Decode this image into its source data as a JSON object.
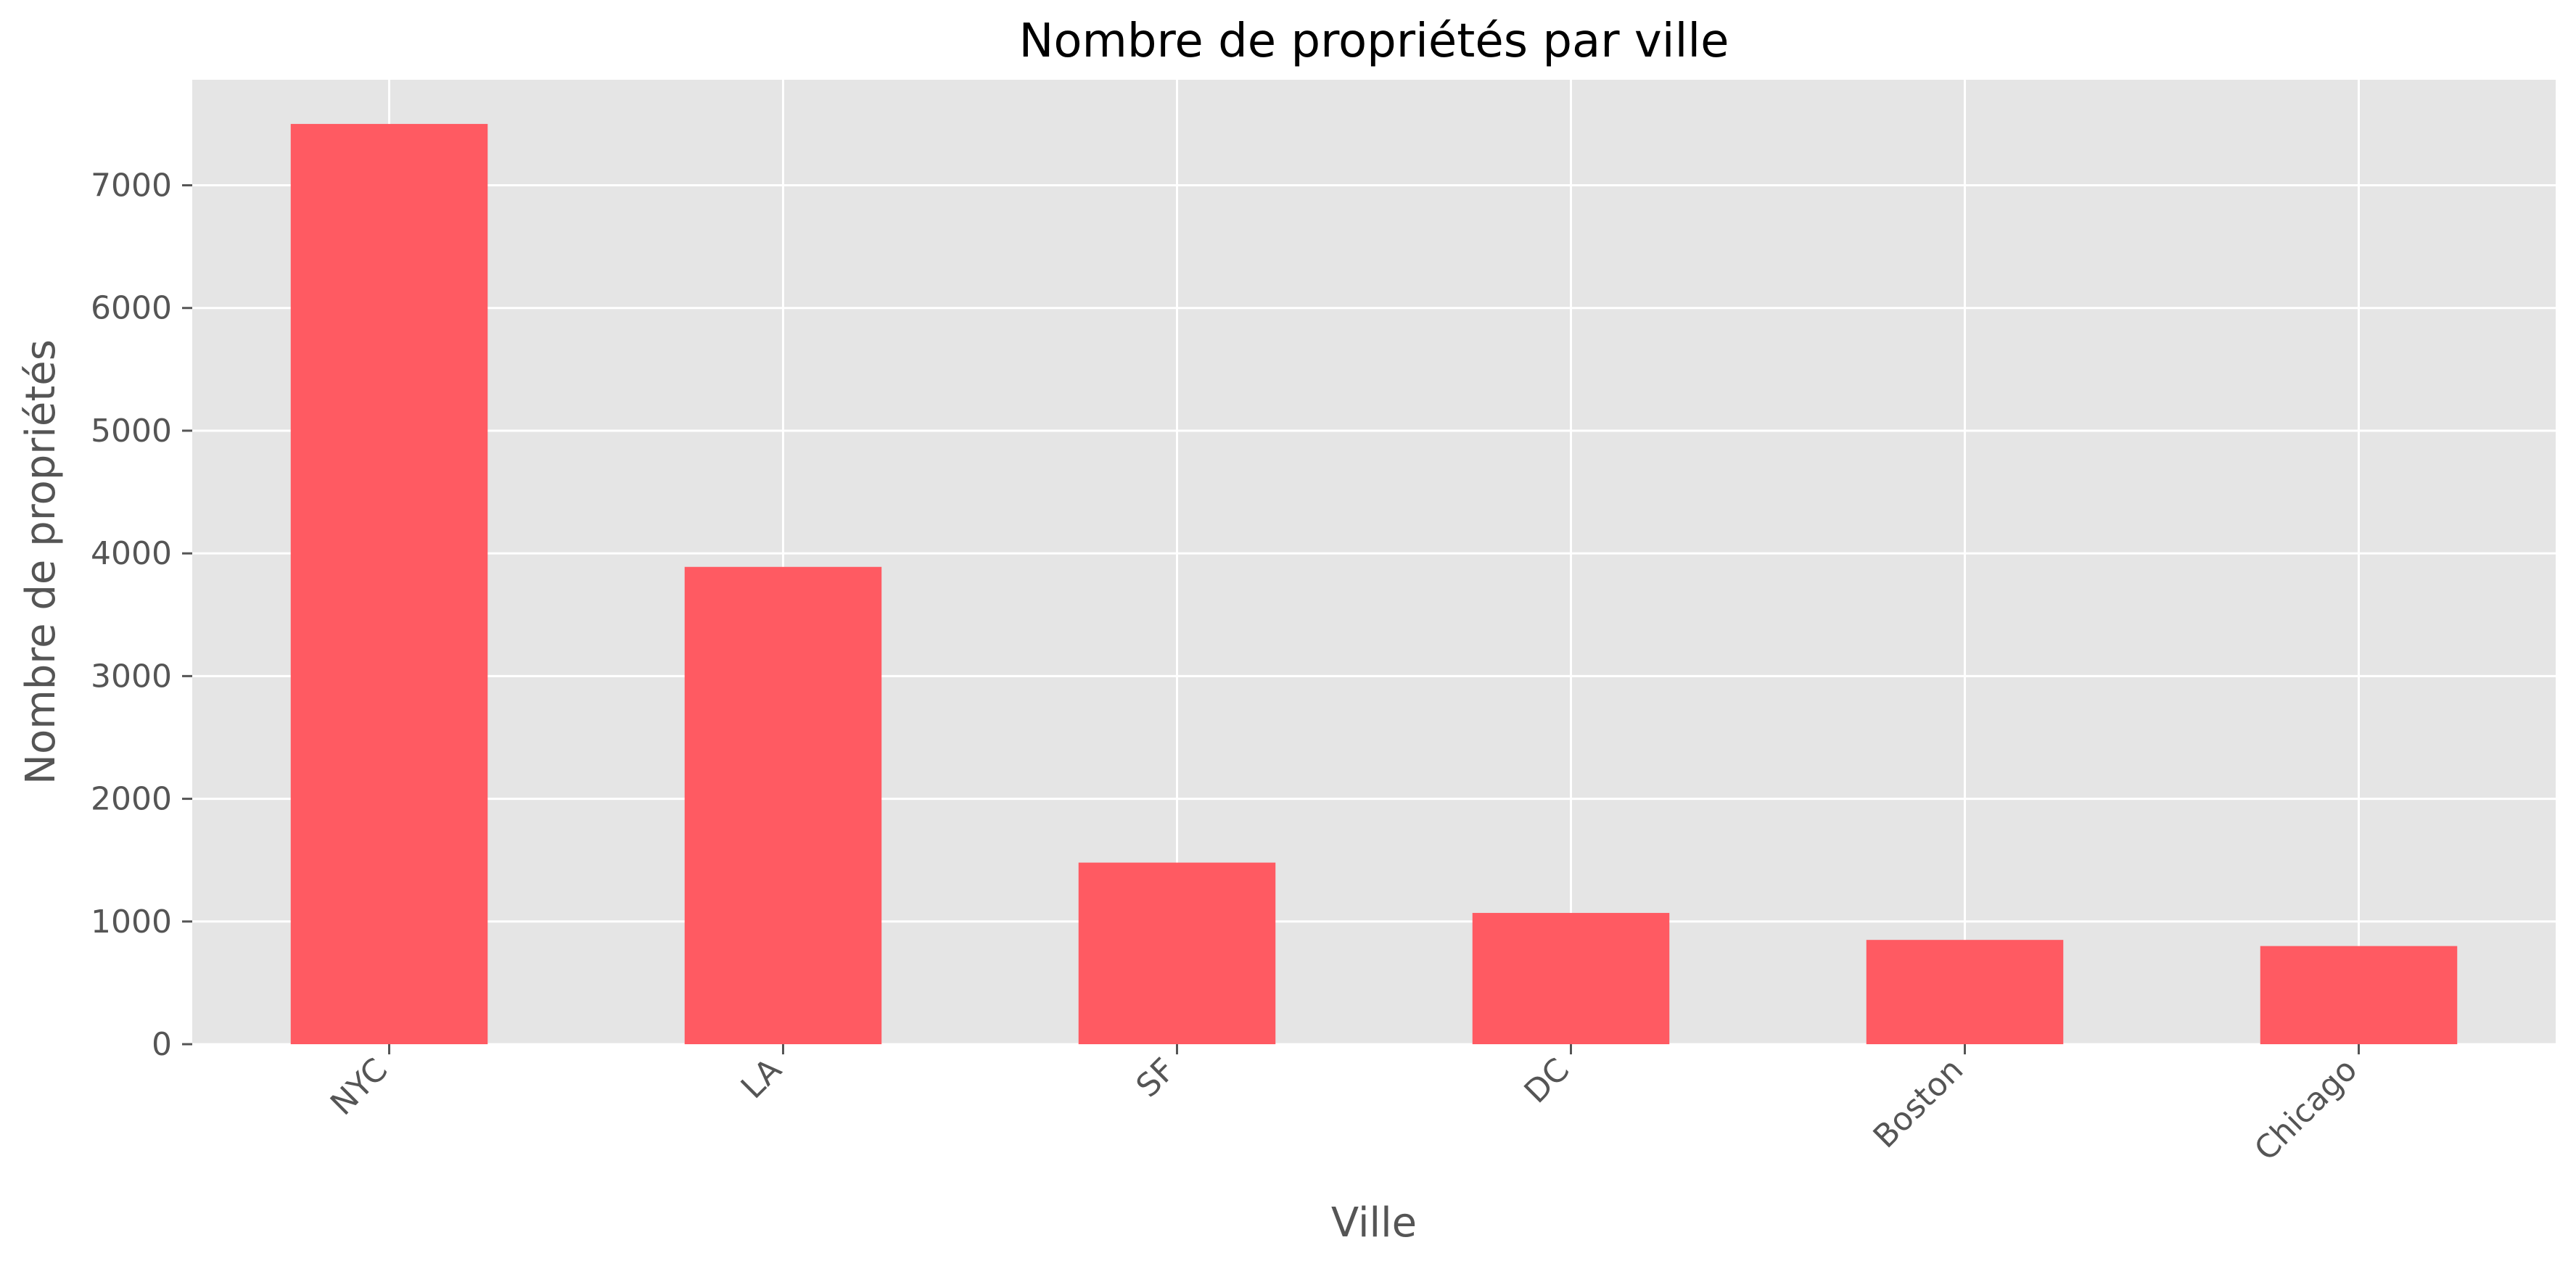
{
  "chart_data": {
    "type": "bar",
    "title": "Nombre de propriétés par ville",
    "xlabel": "Ville",
    "ylabel": "Nombre de propriétés",
    "categories": [
      "NYC",
      "LA",
      "SF",
      "DC",
      "Boston",
      "Chicago"
    ],
    "values": [
      7500,
      3890,
      1480,
      1070,
      850,
      800
    ],
    "ylim": [
      0,
      7860
    ],
    "yticks": [
      0,
      1000,
      2000,
      3000,
      4000,
      5000,
      6000,
      7000
    ],
    "grid": true,
    "bar_color": "#ff5a62",
    "plot_background": "#e5e5e5"
  }
}
